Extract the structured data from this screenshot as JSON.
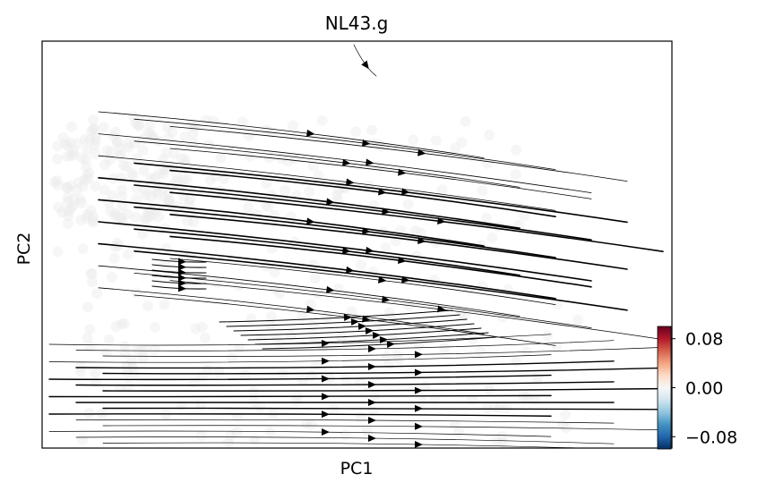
{
  "chart_data": {
    "type": "streamplot",
    "title": "NL43.g",
    "xlabel": "PC1",
    "ylabel": "PC2",
    "grid": false,
    "colorbar": {
      "colormap": "RdBu_r",
      "ticks": [
        "0.08",
        "0.00",
        "−0.08"
      ],
      "tick_values": [
        0.08,
        0.0,
        -0.08
      ],
      "range": [
        -0.1,
        0.1
      ],
      "colors": [
        "#67001f",
        "#b2182b",
        "#d6604d",
        "#f4a582",
        "#fddbc7",
        "#f7f7f7",
        "#d1e5f0",
        "#92c5de",
        "#4393c3",
        "#2166ac",
        "#053061"
      ]
    },
    "point_color": "#ececec",
    "stream_color": "#000000"
  }
}
